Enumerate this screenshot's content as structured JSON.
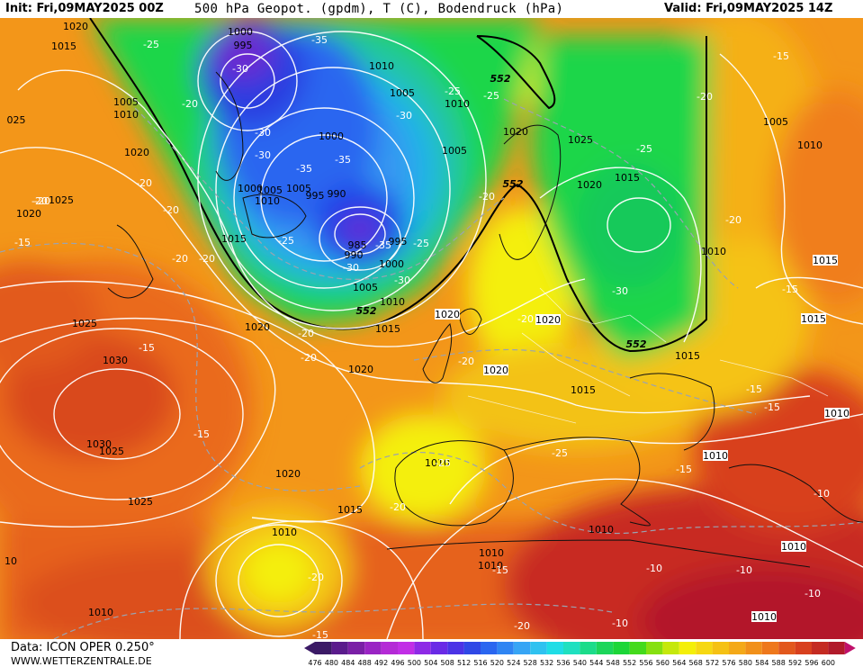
{
  "header": {
    "init": "Init: Fri,09MAY2025 00Z",
    "title": "500 hPa Geopot. (gpdm), T (C), Bodendruck (hPa)",
    "valid": "Valid: Fri,09MAY2025 14Z"
  },
  "footer": {
    "data_source": "Data: ICON OPER 0.250°",
    "website": "WWW.WETTERZENTRALE.DE"
  },
  "colors": {
    "purple": "#8e1fd6",
    "blue": "#2a5cf0",
    "lightblue": "#37a5f5",
    "cyan": "#1fe0e6",
    "green": "#1cd64a",
    "lime": "#86e010",
    "yellow": "#f4ef08",
    "orange": "#f7a918",
    "darkorange": "#f07e1a",
    "red": "#d9401e",
    "darkred": "#b1102a"
  },
  "color_scale": {
    "values": [
      "476",
      "480",
      "484",
      "488",
      "492",
      "496",
      "500",
      "504",
      "508",
      "512",
      "516",
      "520",
      "524",
      "528",
      "532",
      "536",
      "540",
      "544",
      "548",
      "552",
      "556",
      "560",
      "564",
      "568",
      "572",
      "576",
      "580",
      "584",
      "588",
      "592",
      "596",
      "600"
    ]
  },
  "pressure_labels": [
    {
      "text": "1020"
    },
    {
      "text": "1015"
    },
    {
      "text": "1005"
    },
    {
      "text": "1010"
    },
    {
      "text": "1025"
    },
    {
      "text": "1020"
    },
    {
      "text": "1025"
    },
    {
      "text": "1020"
    },
    {
      "text": "1015"
    },
    {
      "text": "1025"
    },
    {
      "text": "1030"
    },
    {
      "text": "1030"
    },
    {
      "text": "1025"
    },
    {
      "text": "1020"
    },
    {
      "text": "1020"
    },
    {
      "text": "1000"
    },
    {
      "text": "995"
    },
    {
      "text": "1010"
    },
    {
      "text": "1005"
    },
    {
      "text": "1000"
    },
    {
      "text": "1000"
    },
    {
      "text": "1005"
    },
    {
      "text": "1010"
    },
    {
      "text": "995"
    },
    {
      "text": "990"
    },
    {
      "text": "1005"
    },
    {
      "text": "985"
    },
    {
      "text": "990"
    },
    {
      "text": "995"
    },
    {
      "text": "1000"
    },
    {
      "text": "1005"
    },
    {
      "text": "1010"
    },
    {
      "text": "1015"
    },
    {
      "text": "1020"
    },
    {
      "text": "1020"
    },
    {
      "text": "1020"
    },
    {
      "text": "1010"
    },
    {
      "text": "1015"
    },
    {
      "text": "1010"
    },
    {
      "text": "1010"
    },
    {
      "text": "1010"
    },
    {
      "text": "1020"
    },
    {
      "text": "1025"
    },
    {
      "text": "1005"
    },
    {
      "text": "1020"
    },
    {
      "text": "1015"
    },
    {
      "text": "1020"
    },
    {
      "text": "1015"
    },
    {
      "text": "1015"
    },
    {
      "text": "1010"
    },
    {
      "text": "1010"
    },
    {
      "text": "1010"
    },
    {
      "text": "1015"
    },
    {
      "text": "1015"
    },
    {
      "text": "1010"
    },
    {
      "text": "1010"
    },
    {
      "text": "1010"
    },
    {
      "text": "1010"
    },
    {
      "text": "1010"
    },
    {
      "text": "1005"
    },
    {
      "text": "1010"
    },
    {
      "text": "10"
    },
    {
      "text": "025"
    }
  ],
  "temp_labels": [
    {
      "text": "-25"
    },
    {
      "text": "-30"
    },
    {
      "text": "-35"
    },
    {
      "text": "-30"
    },
    {
      "text": "-20"
    },
    {
      "text": "-20"
    },
    {
      "text": "-25"
    },
    {
      "text": "-20"
    },
    {
      "text": "-20"
    },
    {
      "text": "-15"
    },
    {
      "text": "-20"
    },
    {
      "text": "-20"
    },
    {
      "text": "-20"
    },
    {
      "text": "-15"
    },
    {
      "text": "-15"
    },
    {
      "text": "-30"
    },
    {
      "text": "-35"
    },
    {
      "text": "-35"
    },
    {
      "text": "-25"
    },
    {
      "text": "-30"
    },
    {
      "text": "-35"
    },
    {
      "text": "-25"
    },
    {
      "text": "-25"
    },
    {
      "text": "-30"
    },
    {
      "text": "-25"
    },
    {
      "text": "-25"
    },
    {
      "text": "-20"
    },
    {
      "text": "-20"
    },
    {
      "text": "-20"
    },
    {
      "text": "-20"
    },
    {
      "text": "-25"
    },
    {
      "text": "-20"
    },
    {
      "text": "-20"
    },
    {
      "text": "-20"
    },
    {
      "text": "-15"
    },
    {
      "text": "-15"
    },
    {
      "text": "-15"
    },
    {
      "text": "-10"
    },
    {
      "text": "-10"
    },
    {
      "text": "-10"
    },
    {
      "text": "-30"
    },
    {
      "text": "-30"
    },
    {
      "text": "-15"
    },
    {
      "text": "-20"
    },
    {
      "text": "-20"
    },
    {
      "text": "-20"
    },
    {
      "text": "-15"
    },
    {
      "text": "-15"
    },
    {
      "text": "-10"
    },
    {
      "text": "-15"
    },
    {
      "text": "-10"
    }
  ],
  "contour_552_labels": [
    {
      "text": "552"
    },
    {
      "text": "552"
    },
    {
      "text": "552"
    },
    {
      "text": "552"
    }
  ]
}
